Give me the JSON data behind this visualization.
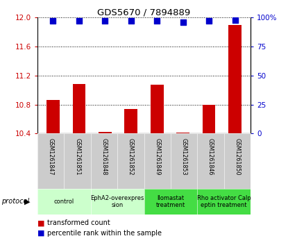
{
  "title": "GDS5670 / 7894889",
  "samples": [
    "GSM1261847",
    "GSM1261851",
    "GSM1261848",
    "GSM1261852",
    "GSM1261849",
    "GSM1261853",
    "GSM1261846",
    "GSM1261850"
  ],
  "transformed_counts": [
    10.86,
    11.08,
    10.42,
    10.74,
    11.07,
    10.41,
    10.8,
    11.9
  ],
  "percentile_ranks": [
    97,
    97,
    97,
    97,
    97,
    96,
    97,
    98
  ],
  "ylim_left": [
    10.4,
    12.0
  ],
  "ylim_right": [
    0,
    100
  ],
  "yticks_left": [
    10.4,
    10.8,
    11.2,
    11.6,
    12.0
  ],
  "yticks_right": [
    0,
    25,
    50,
    75,
    100
  ],
  "protocols": [
    {
      "label": "control",
      "samples": [
        0,
        1
      ],
      "color": "#ccffcc"
    },
    {
      "label": "EphA2-overexpres\nsion",
      "samples": [
        2,
        3
      ],
      "color": "#ccffcc"
    },
    {
      "label": "llomastat\ntreatment",
      "samples": [
        4,
        5
      ],
      "color": "#44dd44"
    },
    {
      "label": "Rho activator Calp\neptin treatment",
      "samples": [
        6,
        7
      ],
      "color": "#44dd44"
    }
  ],
  "bar_color": "#cc0000",
  "dot_color": "#0000cc",
  "bar_width": 0.5,
  "dot_size": 30,
  "left_tick_color": "#cc0000",
  "right_tick_color": "#0000cc",
  "sample_box_color": "#cccccc",
  "legend_items": [
    {
      "color": "#cc0000",
      "label": "transformed count"
    },
    {
      "color": "#0000cc",
      "label": "percentile rank within the sample"
    }
  ]
}
